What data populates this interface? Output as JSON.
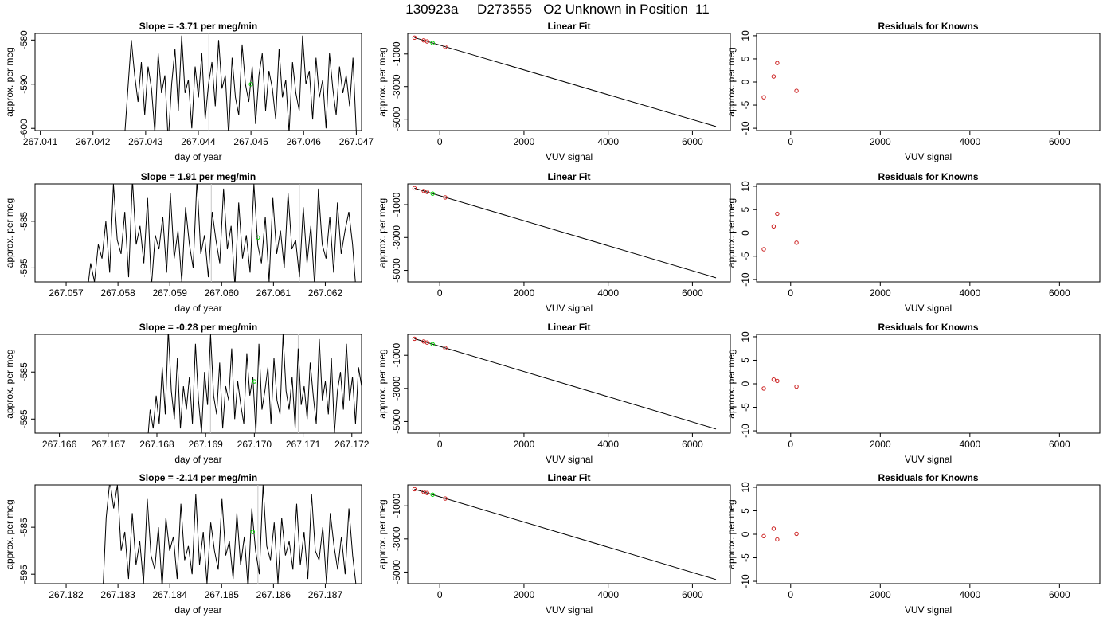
{
  "page_title": "130923a     D273555   O2 Unknown in Position  11",
  "chart_data": [
    {
      "type": "line",
      "title": "Slope =  -3.71  per meg/min",
      "xlabel": "day of year",
      "ylabel": "approx. per meg",
      "xlim": [
        267.0409,
        267.0471
      ],
      "ylim": [
        -600.5,
        -578.5
      ],
      "x_ticks": [
        "267.041",
        "267.042",
        "267.043",
        "267.044",
        "267.045",
        "267.046",
        "267.047"
      ],
      "y_ticks": [
        "-600",
        "-590",
        "-580"
      ],
      "vlines": [
        267.0442
      ],
      "highlight_point": {
        "x": 267.045,
        "y": -590.0,
        "color": "#00cc00"
      },
      "series": [
        {
          "x_start": 267.0426,
          "x_end": 267.047,
          "values": [
            -602,
            -591,
            -580,
            -588,
            -594,
            -585,
            -597,
            -586,
            -591,
            -601,
            -583,
            -592,
            -588,
            -603,
            -590,
            -582,
            -596,
            -579,
            -592,
            -589,
            -600,
            -586,
            -593,
            -583,
            -598,
            -590,
            -585,
            -595,
            -580,
            -591,
            -588,
            -602,
            -584,
            -593,
            -597,
            -581,
            -590,
            -594,
            -586,
            -599,
            -588,
            -583,
            -596,
            -587,
            -591,
            -598,
            -582,
            -593,
            -589,
            -601,
            -585,
            -592,
            -596,
            -579,
            -590,
            -587,
            -598,
            -584,
            -593,
            -589,
            -600,
            -583,
            -591,
            -597,
            -586,
            -592,
            -588,
            -595,
            -584,
            -601
          ]
        }
      ]
    },
    {
      "type": "scatter",
      "title": "Linear Fit",
      "xlabel": "VUV signal",
      "ylabel": "approx. per meg",
      "xlim": [
        -760,
        6900
      ],
      "ylim": [
        -5700,
        260
      ],
      "x_ticks": [
        "0",
        "2000",
        "4000",
        "6000"
      ],
      "y_ticks": [
        "-5000",
        "-3000",
        "-1000"
      ],
      "fit_line": {
        "x": [
          -600,
          6560
        ],
        "y": [
          0,
          -5450
        ]
      },
      "points": [
        {
          "x": -600,
          "y": 0
        },
        {
          "x": -380,
          "y": -165
        },
        {
          "x": -300,
          "y": -230
        },
        {
          "x": 130,
          "y": -560
        }
      ],
      "highlight_point": {
        "x": -170,
        "y": -330,
        "color": "#00cc00"
      }
    },
    {
      "type": "scatter",
      "title": "Residuals for Knowns",
      "xlabel": "VUV signal",
      "ylabel": "approx. per meg",
      "xlim": [
        -760,
        6900
      ],
      "ylim": [
        -10.5,
        10.5
      ],
      "x_ticks": [
        "0",
        "2000",
        "4000",
        "6000"
      ],
      "y_ticks": [
        "-10",
        "-5",
        "0",
        "5",
        "10"
      ],
      "points": [
        {
          "x": -600,
          "y": -3.3
        },
        {
          "x": -380,
          "y": 1.2
        },
        {
          "x": -300,
          "y": 4.1
        },
        {
          "x": 130,
          "y": -1.9
        }
      ]
    },
    {
      "type": "line",
      "title": "Slope =  1.91  per meg/min",
      "xlabel": "day of year",
      "ylabel": "approx. per meg",
      "xlim": [
        267.0564,
        267.0627
      ],
      "ylim": [
        -598,
        -577
      ],
      "x_ticks": [
        "267.057",
        "267.058",
        "267.059",
        "267.060",
        "267.061",
        "267.062"
      ],
      "y_ticks": [
        "-595",
        "-585"
      ],
      "vlines": [
        267.0598,
        267.0615
      ],
      "highlight_point": {
        "x": 267.0607,
        "y": -588.5,
        "color": "#00cc00"
      },
      "series": [
        {
          "x_start": 267.0574,
          "x_end": 267.0626,
          "values": [
            -601,
            -594,
            -598,
            -590,
            -593,
            -585,
            -596,
            -577,
            -589,
            -592,
            -583,
            -597,
            -576,
            -590,
            -586,
            -594,
            -580,
            -599,
            -588,
            -591,
            -584,
            -596,
            -579,
            -593,
            -587,
            -598,
            -582,
            -590,
            -595,
            -576,
            -592,
            -588,
            -597,
            -583,
            -589,
            -594,
            -578,
            -591,
            -586,
            -599,
            -581,
            -593,
            -588,
            -596,
            -577,
            -590,
            -594,
            -584,
            -598,
            -580,
            -592,
            -587,
            -595,
            -579,
            -591,
            -589,
            -597,
            -582,
            -594,
            -586,
            -599,
            -578,
            -590,
            -593,
            -584,
            -596,
            -581,
            -592,
            -587,
            -583,
            -590,
            -601
          ]
        }
      ]
    },
    {
      "type": "scatter",
      "title": "Linear Fit",
      "xlabel": "VUV signal",
      "ylabel": "approx. per meg",
      "xlim": [
        -760,
        6900
      ],
      "ylim": [
        -5700,
        260
      ],
      "x_ticks": [
        "0",
        "2000",
        "4000",
        "6000"
      ],
      "y_ticks": [
        "-5000",
        "-3000",
        "-1000"
      ],
      "fit_line": {
        "x": [
          -600,
          6560
        ],
        "y": [
          0,
          -5450
        ]
      },
      "points": [
        {
          "x": -600,
          "y": 0
        },
        {
          "x": -380,
          "y": -165
        },
        {
          "x": -300,
          "y": -230
        },
        {
          "x": 130,
          "y": -560
        }
      ],
      "highlight_point": {
        "x": -170,
        "y": -330,
        "color": "#00cc00"
      }
    },
    {
      "type": "scatter",
      "title": "Residuals for Knowns",
      "xlabel": "VUV signal",
      "ylabel": "approx. per meg",
      "xlim": [
        -760,
        6900
      ],
      "ylim": [
        -10.5,
        10.5
      ],
      "x_ticks": [
        "0",
        "2000",
        "4000",
        "6000"
      ],
      "y_ticks": [
        "-10",
        "-5",
        "0",
        "5",
        "10"
      ],
      "points": [
        {
          "x": -600,
          "y": -3.5
        },
        {
          "x": -380,
          "y": 1.4
        },
        {
          "x": -300,
          "y": 4.1
        },
        {
          "x": 130,
          "y": -2.1
        }
      ]
    },
    {
      "type": "line",
      "title": "Slope =  -0.28  per meg/min",
      "xlabel": "day of year",
      "ylabel": "approx. per meg",
      "xlim": [
        267.1655,
        267.1722
      ],
      "ylim": [
        -598,
        -577
      ],
      "x_ticks": [
        "267.166",
        "267.167",
        "267.168",
        "267.169",
        "267.170",
        "267.171",
        "267.172"
      ],
      "y_ticks": [
        "-595",
        "-585"
      ],
      "vlines": [
        267.1691,
        267.1709
      ],
      "highlight_point": {
        "x": 267.17,
        "y": -587.0,
        "color": "#00cc00"
      },
      "series": [
        {
          "x_start": 267.1678,
          "x_end": 267.1722,
          "values": [
            -601,
            -593,
            -597,
            -590,
            -596,
            -584,
            -594,
            -576,
            -589,
            -595,
            -582,
            -597,
            -588,
            -593,
            -586,
            -596,
            -579,
            -591,
            -598,
            -585,
            -592,
            -577,
            -590,
            -594,
            -583,
            -597,
            -588,
            -591,
            -580,
            -595,
            -587,
            -592,
            -596,
            -581,
            -590,
            -586,
            -598,
            -579,
            -593,
            -589,
            -584,
            -596,
            -582,
            -591,
            -594,
            -577,
            -589,
            -593,
            -586,
            -597,
            -580,
            -592,
            -588,
            -595,
            -583,
            -590,
            -596,
            -578,
            -591,
            -587,
            -594,
            -582,
            -598,
            -589,
            -585,
            -593,
            -579,
            -591,
            -586,
            -596,
            -584,
            -588
          ]
        }
      ]
    },
    {
      "type": "scatter",
      "title": "Linear Fit",
      "xlabel": "VUV signal",
      "ylabel": "approx. per meg",
      "xlim": [
        -760,
        6900
      ],
      "ylim": [
        -5700,
        260
      ],
      "x_ticks": [
        "0",
        "2000",
        "4000",
        "6000"
      ],
      "y_ticks": [
        "-5000",
        "-3000",
        "-1000"
      ],
      "fit_line": {
        "x": [
          -600,
          6560
        ],
        "y": [
          0,
          -5450
        ]
      },
      "points": [
        {
          "x": -600,
          "y": 0
        },
        {
          "x": -380,
          "y": -165
        },
        {
          "x": -300,
          "y": -230
        },
        {
          "x": 130,
          "y": -560
        }
      ],
      "highlight_point": {
        "x": -170,
        "y": -330,
        "color": "#00cc00"
      }
    },
    {
      "type": "scatter",
      "title": "Residuals for Knowns",
      "xlabel": "VUV signal",
      "ylabel": "approx. per meg",
      "xlim": [
        -760,
        6900
      ],
      "ylim": [
        -10.5,
        10.5
      ],
      "x_ticks": [
        "0",
        "2000",
        "4000",
        "6000"
      ],
      "y_ticks": [
        "-10",
        "-5",
        "0",
        "5",
        "10"
      ],
      "points": [
        {
          "x": -600,
          "y": -1.0
        },
        {
          "x": -380,
          "y": 0.9
        },
        {
          "x": -300,
          "y": 0.6
        },
        {
          "x": 130,
          "y": -0.6
        }
      ]
    },
    {
      "type": "line",
      "title": "Slope =  -2.14  per meg/min",
      "xlabel": "day of year",
      "ylabel": "approx. per meg",
      "xlim": [
        267.1814,
        267.1877
      ],
      "ylim": [
        -597,
        -576
      ],
      "x_ticks": [
        "267.182",
        "267.183",
        "267.184",
        "267.185",
        "267.186",
        "267.187"
      ],
      "y_ticks": [
        "-595",
        "-585"
      ],
      "vlines": [
        267.1857
      ],
      "highlight_point": {
        "x": 267.1856,
        "y": -586.0,
        "color": "#00cc00"
      },
      "series": [
        {
          "x_start": 267.1827,
          "x_end": 267.1876,
          "values": [
            -601,
            -583,
            -575,
            -581,
            -576,
            -590,
            -586,
            -596,
            -582,
            -593,
            -588,
            -597,
            -579,
            -591,
            -594,
            -585,
            -598,
            -583,
            -590,
            -587,
            -596,
            -580,
            -592,
            -589,
            -595,
            -578,
            -593,
            -586,
            -597,
            -584,
            -590,
            -594,
            -579,
            -591,
            -588,
            -596,
            -582,
            -593,
            -587,
            -598,
            -581,
            -590,
            -595,
            -576,
            -589,
            -592,
            -584,
            -597,
            -583,
            -591,
            -588,
            -594,
            -580,
            -593,
            -586,
            -596,
            -578,
            -590,
            -592,
            -585,
            -597,
            -582,
            -589,
            -594,
            -587,
            -595,
            -581,
            -591,
            -598
          ]
        }
      ]
    },
    {
      "type": "scatter",
      "title": "Linear Fit",
      "xlabel": "VUV signal",
      "ylabel": "approx. per meg",
      "xlim": [
        -760,
        6900
      ],
      "ylim": [
        -5700,
        260
      ],
      "x_ticks": [
        "0",
        "2000",
        "4000",
        "6000"
      ],
      "y_ticks": [
        "-5000",
        "-3000",
        "-1000"
      ],
      "fit_line": {
        "x": [
          -600,
          6560
        ],
        "y": [
          0,
          -5450
        ]
      },
      "points": [
        {
          "x": -600,
          "y": 0
        },
        {
          "x": -380,
          "y": -165
        },
        {
          "x": -300,
          "y": -230
        },
        {
          "x": 130,
          "y": -560
        }
      ],
      "highlight_point": {
        "x": -170,
        "y": -330,
        "color": "#00cc00"
      }
    },
    {
      "type": "scatter",
      "title": "Residuals for Knowns",
      "xlabel": "VUV signal",
      "ylabel": "approx. per meg",
      "xlim": [
        -760,
        6900
      ],
      "ylim": [
        -10.5,
        10.5
      ],
      "x_ticks": [
        "0",
        "2000",
        "4000",
        "6000"
      ],
      "y_ticks": [
        "-10",
        "-5",
        "0",
        "5",
        "10"
      ],
      "points": [
        {
          "x": -600,
          "y": -0.4
        },
        {
          "x": -380,
          "y": 1.2
        },
        {
          "x": -300,
          "y": -1.1
        },
        {
          "x": 130,
          "y": 0.1
        }
      ]
    }
  ]
}
